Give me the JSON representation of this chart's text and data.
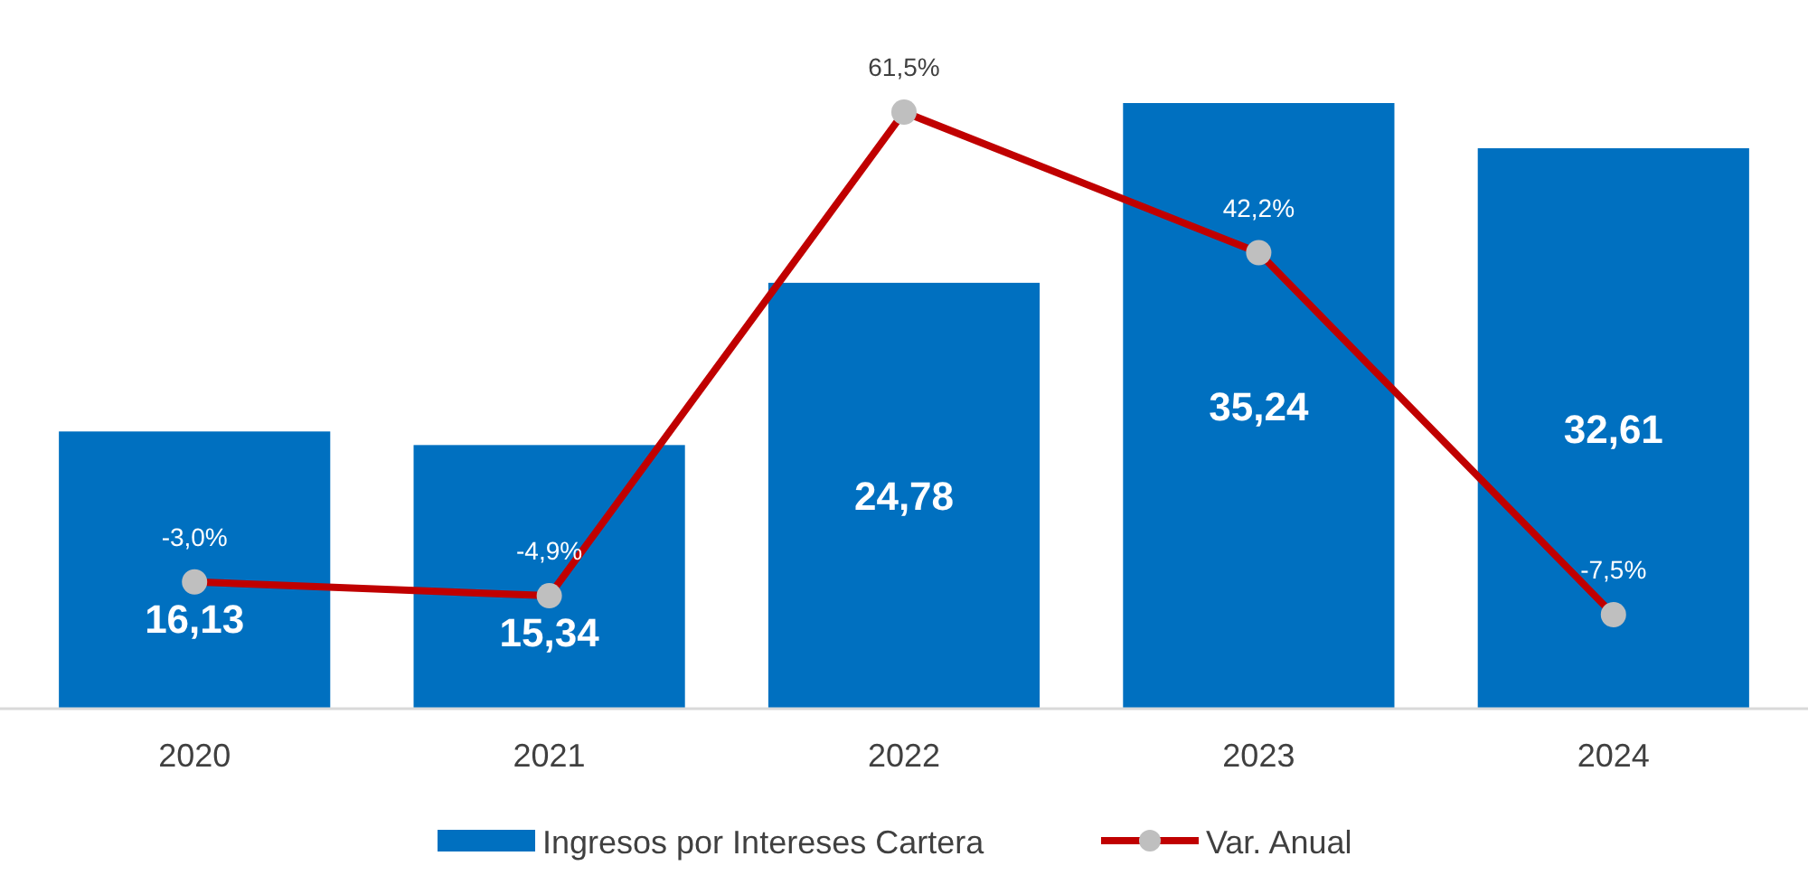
{
  "chart_data": {
    "type": "bar",
    "categories": [
      "2020",
      "2021",
      "2022",
      "2023",
      "2024"
    ],
    "legend": "bottom",
    "marker": "circle",
    "series": [
      {
        "name": "Ingresos por Intereses Cartera",
        "color": "#0070c0",
        "values": [
          16.13,
          15.34,
          24.78,
          35.24,
          32.61
        ],
        "value_labels": [
          "16,13",
          "15,34",
          "24,78",
          "35,24",
          "32,61"
        ]
      },
      {
        "name": "Var. Anual",
        "type": "line",
        "axis": "y2",
        "color": "#c00000",
        "values": [
          -3.0,
          -4.9,
          61.5,
          42.2,
          -7.5
        ],
        "value_labels": [
          "-3,0%",
          "-4,9%",
          "61,5%",
          "42,2%",
          "-7,5%"
        ]
      }
    ]
  }
}
